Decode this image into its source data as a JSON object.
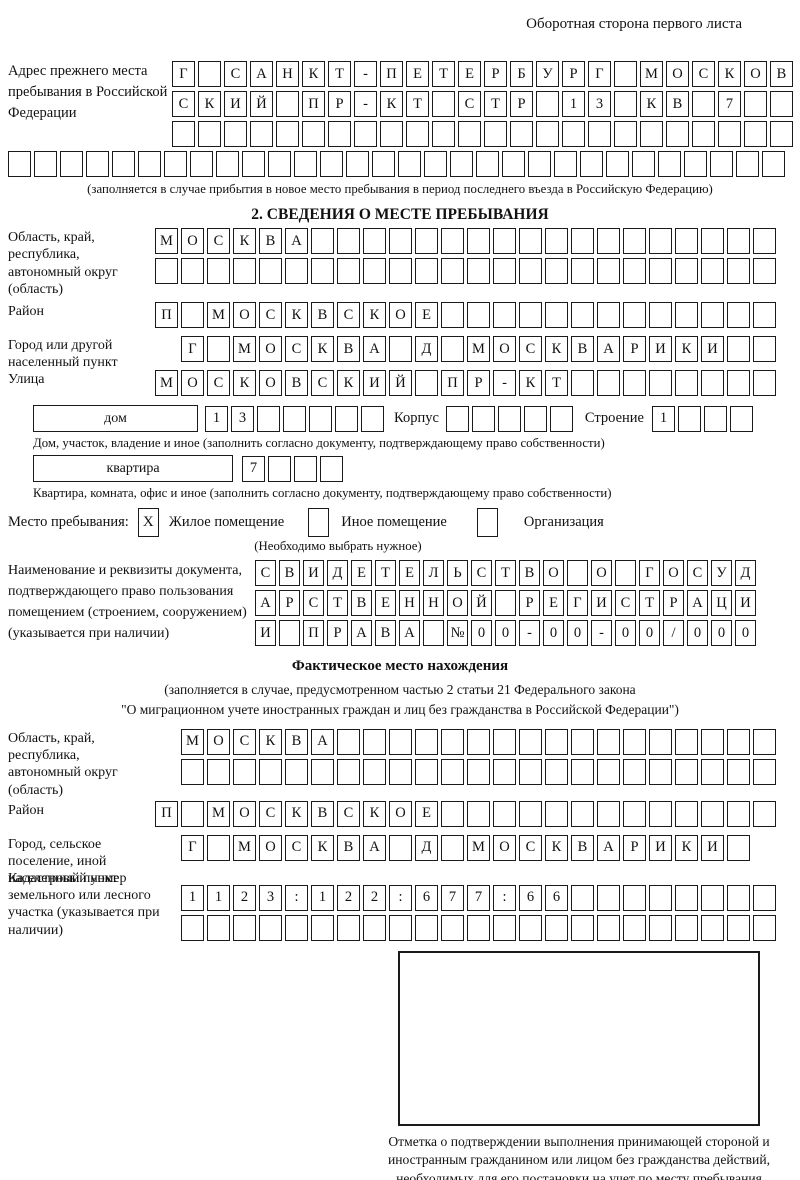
{
  "page": {
    "header_right": "Оборотная сторона первого листа"
  },
  "prev": {
    "label": "Адрес прежнего места пребывания в Российской Федерации",
    "row1": "Г САНКТ-ПЕТЕРБУРГ МОСКОВ",
    "row2": "СКИЙ ПР-КТ СТР 13 КВ 7  ",
    "row3": "                        ",
    "row4": "                              ",
    "note": "(заполняется в случае прибытия в новое место пребывания в период последнего въезда в Российскую Федерацию)"
  },
  "s2": {
    "title": "2. СВЕДЕНИЯ О МЕСТЕ ПРЕБЫВАНИЯ",
    "region": {
      "label": "Область, край, республика, автономный округ (область)",
      "row1": "МОСКВА                  ",
      "row2": "                        "
    },
    "district": {
      "label": "Район",
      "row": "П МОСКВСКОЕ             "
    },
    "city": {
      "label": "Город или другой населенный пункт",
      "row": "Г МОСКВА Д МОСКВАРИКИ  "
    },
    "street": {
      "label": "Улица",
      "row": "МОСКОВСКИЙ ПР-КТ        "
    },
    "house": {
      "label": "дом",
      "value": "13     ",
      "korpus_label": "Корпус",
      "korpus_value": "     ",
      "stroenie_label": "Строение",
      "stroenie_value": "1   "
    },
    "house_note": "Дом, участок, владение и иное (заполнить согласно документу, подтверждающему право собственности)",
    "apartment": {
      "label": "квартира",
      "value": "7   "
    },
    "apartment_note": "Квартира, комната, офис и иное (заполнить согласно документу, подтверждающему право собственности)",
    "stay": {
      "label": "Место пребывания:",
      "options": [
        {
          "label": "Жилое помещение",
          "mark": "X"
        },
        {
          "label": "Иное помещение",
          "mark": " "
        },
        {
          "label": "Организация",
          "mark": " "
        }
      ],
      "note": "(Необходимо выбрать нужное)"
    },
    "doc": {
      "label": "Наименование и реквизиты документа, подтверждающего право пользования помещением (строением, сооружением) (указывается при наличии)",
      "row1": "СВИДЕТЕЛЬСТВО О ГОСУД",
      "row2": "АРСТВЕННОЙ РЕГИСТРАЦИ",
      "row3": "И ПРАВА №00-00-00/000"
    }
  },
  "act": {
    "title": "Фактическое место нахождения",
    "note1": "(заполняется в случае, предусмотренном частью 2 статьи 21 Федерального закона",
    "note2": "\"О миграционном учете иностранных граждан и лиц без гражданства в Российской Федерации\")",
    "region": {
      "label": "Область, край, республика, автономный округ (область)",
      "row1": "МОСКВА                 ",
      "row2": "                       "
    },
    "district": {
      "label": "Район",
      "row": "П МОСКВСКОЕ             "
    },
    "city": {
      "label": "Город, сельское поселение, иной населенный пункт",
      "row": "Г МОСКВА Д МОСКВАРИКИ "
    },
    "cadastral": {
      "label": "Кадастровый номер земельного или лесного участка (указывается при наличии)",
      "row1": "1123:122:677:66        ",
      "row2": "                       "
    }
  },
  "stamp": {
    "note": "Отметка о подтверждении выполнения принимающей стороной и иностранным гражданином или лицом без гражданства действий, необходимых для его постановки на учет по месту пребывания"
  }
}
